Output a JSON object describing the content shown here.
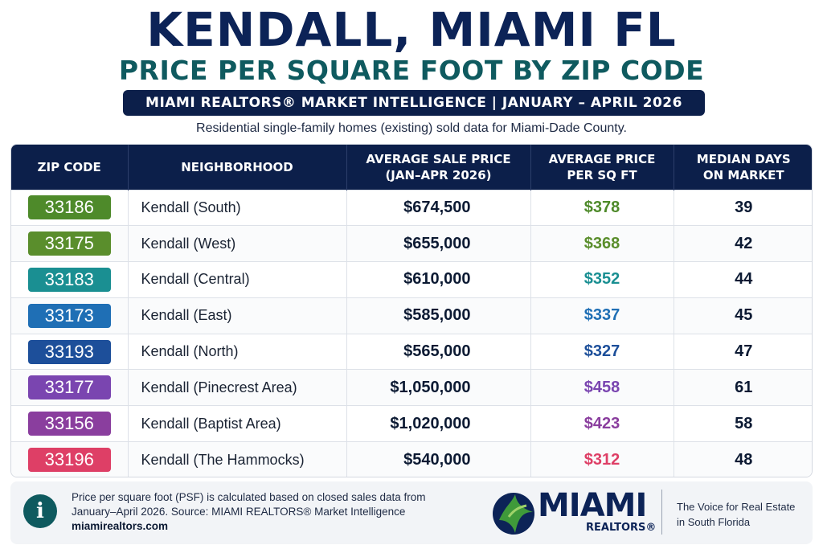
{
  "header": {
    "title": "KENDALL, MIAMI FL",
    "subtitle": "PRICE PER SQUARE FOOT BY ZIP CODE",
    "banner": "MIAMI REALTORS® MARKET INTELLIGENCE  |  JANUARY – APRIL 2026",
    "description": "Residential single-family homes (existing) sold data for Miami-Dade County."
  },
  "table": {
    "columns": [
      "ZIP CODE",
      "NEIGHBORHOOD",
      "AVERAGE SALE PRICE\n(JAN–APR 2026)",
      "AVERAGE PRICE\nPER SQ FT",
      "MEDIAN DAYS\nON MARKET"
    ],
    "rows": [
      {
        "zip": "33186",
        "neighborhood": "Kendall (South)",
        "avg_price": "$674,500",
        "psf": "$378",
        "dom": "39",
        "zip_color": "#4e8a2a",
        "psf_color": "#4e8a2a"
      },
      {
        "zip": "33175",
        "neighborhood": "Kendall (West)",
        "avg_price": "$655,000",
        "psf": "$368",
        "dom": "42",
        "zip_color": "#5a8e2c",
        "psf_color": "#5a8e2c"
      },
      {
        "zip": "33183",
        "neighborhood": "Kendall (Central)",
        "avg_price": "$610,000",
        "psf": "$352",
        "dom": "44",
        "zip_color": "#1a8f92",
        "psf_color": "#1a8f92"
      },
      {
        "zip": "33173",
        "neighborhood": "Kendall (East)",
        "avg_price": "$585,000",
        "psf": "$337",
        "dom": "45",
        "zip_color": "#1f6fb5",
        "psf_color": "#1f6fb5"
      },
      {
        "zip": "33193",
        "neighborhood": "Kendall (North)",
        "avg_price": "$565,000",
        "psf": "$327",
        "dom": "47",
        "zip_color": "#1d4f9a",
        "psf_color": "#1d4f9a"
      },
      {
        "zip": "33177",
        "neighborhood": "Kendall (Pinecrest Area)",
        "avg_price": "$1,050,000",
        "psf": "$458",
        "dom": "61",
        "zip_color": "#7a45b0",
        "psf_color": "#7a45b0"
      },
      {
        "zip": "33156",
        "neighborhood": "Kendall (Baptist Area)",
        "avg_price": "$1,020,000",
        "psf": "$423",
        "dom": "58",
        "zip_color": "#8a3e9e",
        "psf_color": "#8a3e9e"
      },
      {
        "zip": "33196",
        "neighborhood": "Kendall (The Hammocks)",
        "avg_price": "$540,000",
        "psf": "$312",
        "dom": "48",
        "zip_color": "#de3f66",
        "psf_color": "#de3f66"
      }
    ]
  },
  "footer": {
    "info_icon": "info-icon",
    "note_line1": "Price per square foot (PSF) is calculated based on closed sales data from",
    "note_line2": "January–April 2026. Source: MIAMI REALTORS® Market Intelligence",
    "url": "miamirealtors.com",
    "logo_word": "MIAMI",
    "logo_sub": "REALTORS®",
    "tagline_line1": "The Voice for Real Estate",
    "tagline_line2": "in South Florida"
  }
}
